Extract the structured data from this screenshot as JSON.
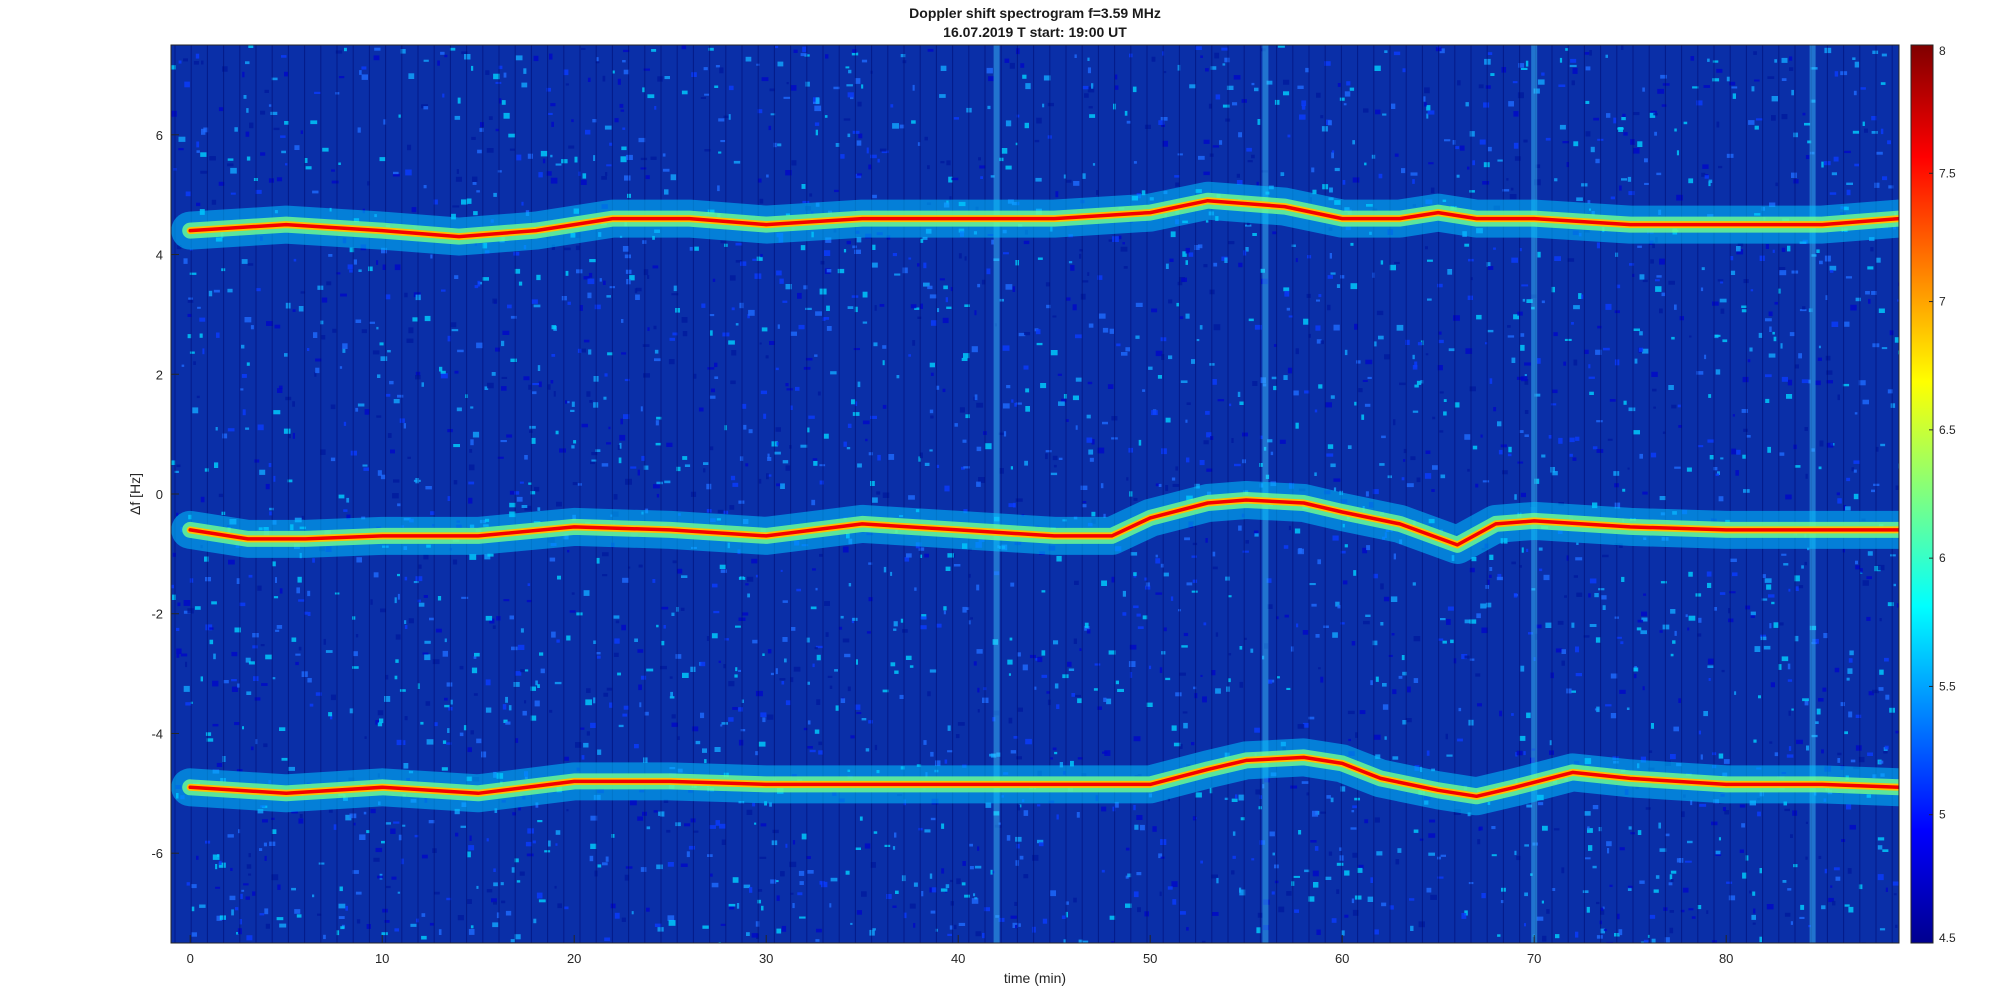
{
  "chart_data": {
    "type": "heatmap",
    "title": "Doppler shift spectrogram f=3.59 MHz",
    "subtitle": "16.07.2019    T start: 19:00 UT",
    "xlabel": "time (min)",
    "ylabel": "Δf [Hz]",
    "xlim": [
      -1,
      89
    ],
    "ylim": [
      -7.5,
      7.5
    ],
    "x_ticks": [
      "0",
      "10",
      "20",
      "30",
      "40",
      "50",
      "60",
      "70",
      "80"
    ],
    "x_tick_values": [
      0,
      10,
      20,
      30,
      40,
      50,
      60,
      70,
      80
    ],
    "y_ticks": [
      "-6",
      "-4",
      "-2",
      "0",
      "2",
      "4",
      "6"
    ],
    "y_tick_values": [
      -6,
      -4,
      -2,
      0,
      2,
      4,
      6
    ],
    "colorbar": {
      "range": [
        4.5,
        8
      ],
      "ticks": [
        "4.5",
        "5",
        "5.5",
        "6",
        "6.5",
        "7",
        "7.5",
        "8"
      ],
      "tick_values": [
        4.5,
        5,
        5.5,
        6,
        6.5,
        7,
        7.5,
        8
      ],
      "colormap": "jet"
    },
    "background_level": 5.0,
    "series": [
      {
        "x": [
          0,
          5,
          10,
          14,
          18,
          22,
          26,
          30,
          35,
          40,
          45,
          50,
          53,
          57,
          60,
          63,
          65,
          67,
          70,
          75,
          80,
          85,
          89
        ],
        "y": [
          4.4,
          4.5,
          4.4,
          4.3,
          4.4,
          4.6,
          4.6,
          4.5,
          4.6,
          4.6,
          4.6,
          4.7,
          4.9,
          4.8,
          4.6,
          4.6,
          4.7,
          4.6,
          4.6,
          4.5,
          4.5,
          4.5,
          4.6
        ]
      },
      {
        "x": [
          0,
          3,
          6,
          10,
          15,
          20,
          25,
          30,
          35,
          40,
          45,
          48,
          50,
          53,
          55,
          58,
          60,
          63,
          66,
          68,
          70,
          75,
          80,
          85,
          89
        ],
        "y": [
          -0.6,
          -0.75,
          -0.75,
          -0.7,
          -0.7,
          -0.55,
          -0.6,
          -0.7,
          -0.5,
          -0.6,
          -0.7,
          -0.7,
          -0.4,
          -0.15,
          -0.1,
          -0.15,
          -0.3,
          -0.5,
          -0.85,
          -0.5,
          -0.45,
          -0.55,
          -0.6,
          -0.6,
          -0.6
        ]
      },
      {
        "x": [
          0,
          5,
          10,
          15,
          20,
          25,
          30,
          40,
          45,
          50,
          53,
          55,
          58,
          60,
          62,
          65,
          67,
          69,
          72,
          75,
          80,
          85,
          89
        ],
        "y": [
          -4.9,
          -5.0,
          -4.9,
          -5.0,
          -4.8,
          -4.8,
          -4.85,
          -4.85,
          -4.85,
          -4.85,
          -4.6,
          -4.45,
          -4.4,
          -4.5,
          -4.75,
          -4.95,
          -5.05,
          -4.9,
          -4.65,
          -4.75,
          -4.85,
          -4.85,
          -4.9
        ]
      }
    ],
    "vertical_stripes_min": [
      42,
      56,
      70,
      84.5
    ]
  }
}
